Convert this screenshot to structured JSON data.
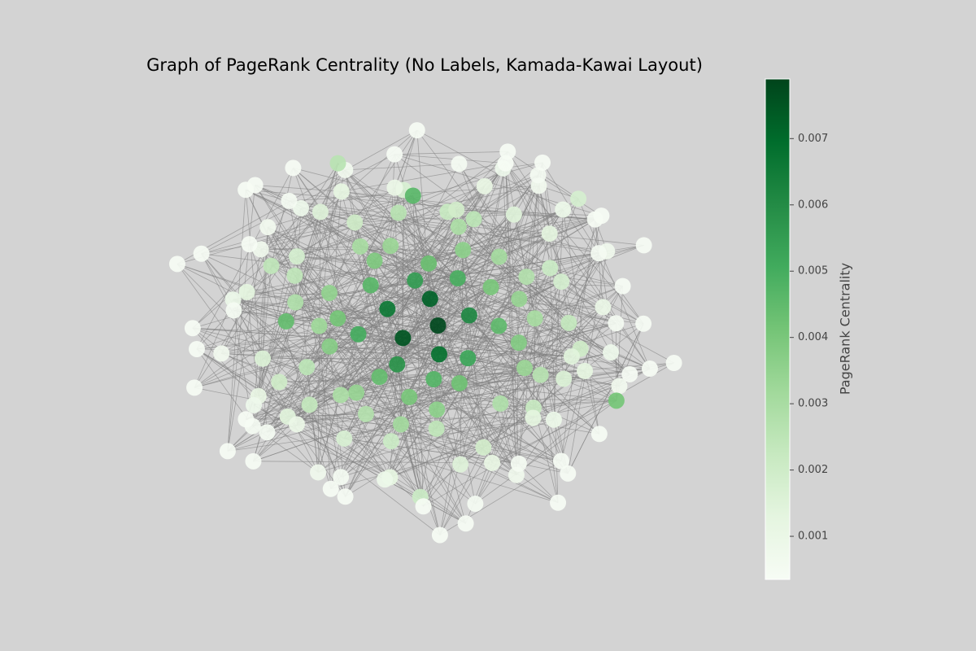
{
  "chart_data": {
    "type": "network",
    "title": "Graph of PageRank Centrality (No Labels, Kamada-Kawai Layout)",
    "colorbar": {
      "label": "PageRank Centrality",
      "lim": [
        0.00035,
        0.0079
      ],
      "ticks": [
        0.001,
        0.002,
        0.003,
        0.004,
        0.005,
        0.006,
        0.007
      ],
      "colormap": [
        "#f7fcf5",
        "#e5f5e0",
        "#c7e9c0",
        "#a1d99b",
        "#74c476",
        "#41ab5d",
        "#238b45",
        "#006d2c",
        "#00441b"
      ]
    },
    "edge_color": "#808080",
    "nodes": {
      "values": [
        0.0078,
        0.0075,
        0.0072,
        0.0068,
        0.0066,
        0.0061,
        0.0058,
        0.0055,
        0.0052,
        0.005,
        0.0049,
        0.0047,
        0.0046,
        0.0045,
        0.0044,
        0.0043,
        0.0042,
        0.0041,
        0.004,
        0.004,
        0.0039,
        0.0038,
        0.0037,
        0.0036,
        0.0036,
        0.0035,
        0.0034,
        0.0034,
        0.0033,
        0.0033,
        0.0032,
        0.0031,
        0.0031,
        0.003,
        0.003,
        0.0029,
        0.0029,
        0.0028,
        0.0028,
        0.0027,
        0.0027,
        0.0026,
        0.0026,
        0.0025,
        0.0025,
        0.0024,
        0.0024,
        0.0023,
        0.0023,
        0.0022,
        0.0022,
        0.0044,
        0.0021,
        0.0021,
        0.002,
        0.002,
        0.002,
        0.0019,
        0.0019,
        0.0018,
        0.0018,
        0.0017,
        0.0017,
        0.0016,
        0.0016,
        0.0015,
        0.0015,
        0.0015,
        0.0014,
        0.0014,
        0.0046,
        0.0013,
        0.0013,
        0.0013,
        0.0012,
        0.0012,
        0.0012,
        0.0011,
        0.0011,
        0.0011,
        0.0024,
        0.001,
        0.001,
        0.001,
        0.0009,
        0.0009,
        0.0009,
        0.0009,
        0.0008,
        0.0008,
        0.0008,
        0.0008,
        0.0007,
        0.0007,
        0.0007,
        0.0007,
        0.0006,
        0.0006,
        0.0006,
        0.0006,
        0.0021,
        0.0006,
        0.0005,
        0.0005,
        0.0005,
        0.0005,
        0.0005,
        0.0005,
        0.0005,
        0.0005,
        0.0041,
        0.0005,
        0.0005,
        0.0005,
        0.0004,
        0.0004,
        0.0004,
        0.0004,
        0.0004,
        0.0004,
        0.0018,
        0.0004,
        0.0004,
        0.0004,
        0.0004,
        0.0004,
        0.0004,
        0.0004,
        0.0004,
        0.0004,
        0.0026,
        0.0004,
        0.0004,
        0.0004,
        0.0004,
        0.0004,
        0.0004,
        0.0004,
        0.0004,
        0.0004,
        0.0004,
        0.0004,
        0.0004,
        0.0004,
        0.0004,
        0.0004,
        0.0004,
        0.0004,
        0.0004,
        0.0004
      ]
    }
  }
}
